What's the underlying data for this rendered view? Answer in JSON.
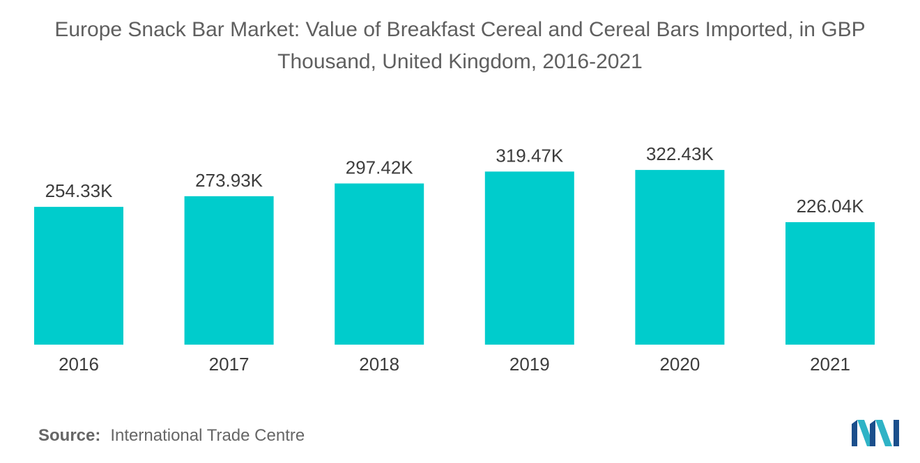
{
  "chart_data": {
    "type": "bar",
    "title_line1": "Europe Snack Bar Market: Value of Breakfast Cereal and Cereal Bars Imported, in GBP",
    "title_line2": "Thousand, United Kingdom, 2016-2021",
    "categories": [
      "2016",
      "2017",
      "2018",
      "2019",
      "2020",
      "2021"
    ],
    "values": [
      254.33,
      273.93,
      297.42,
      319.47,
      322.43,
      226.04
    ],
    "value_labels": [
      "254.33K",
      "273.93K",
      "297.42K",
      "319.47K",
      "322.43K",
      "226.04K"
    ],
    "xlabel": "",
    "ylabel": "",
    "grid": false,
    "legend": "none",
    "bar_color": "#00cccc"
  },
  "footer": {
    "source_label": "Source:",
    "source_text": "International Trade Centre"
  },
  "logo": {
    "icon": "mordor-intelligence-logo-icon",
    "colors": [
      "#1b4f8c",
      "#2fb3c6"
    ]
  }
}
